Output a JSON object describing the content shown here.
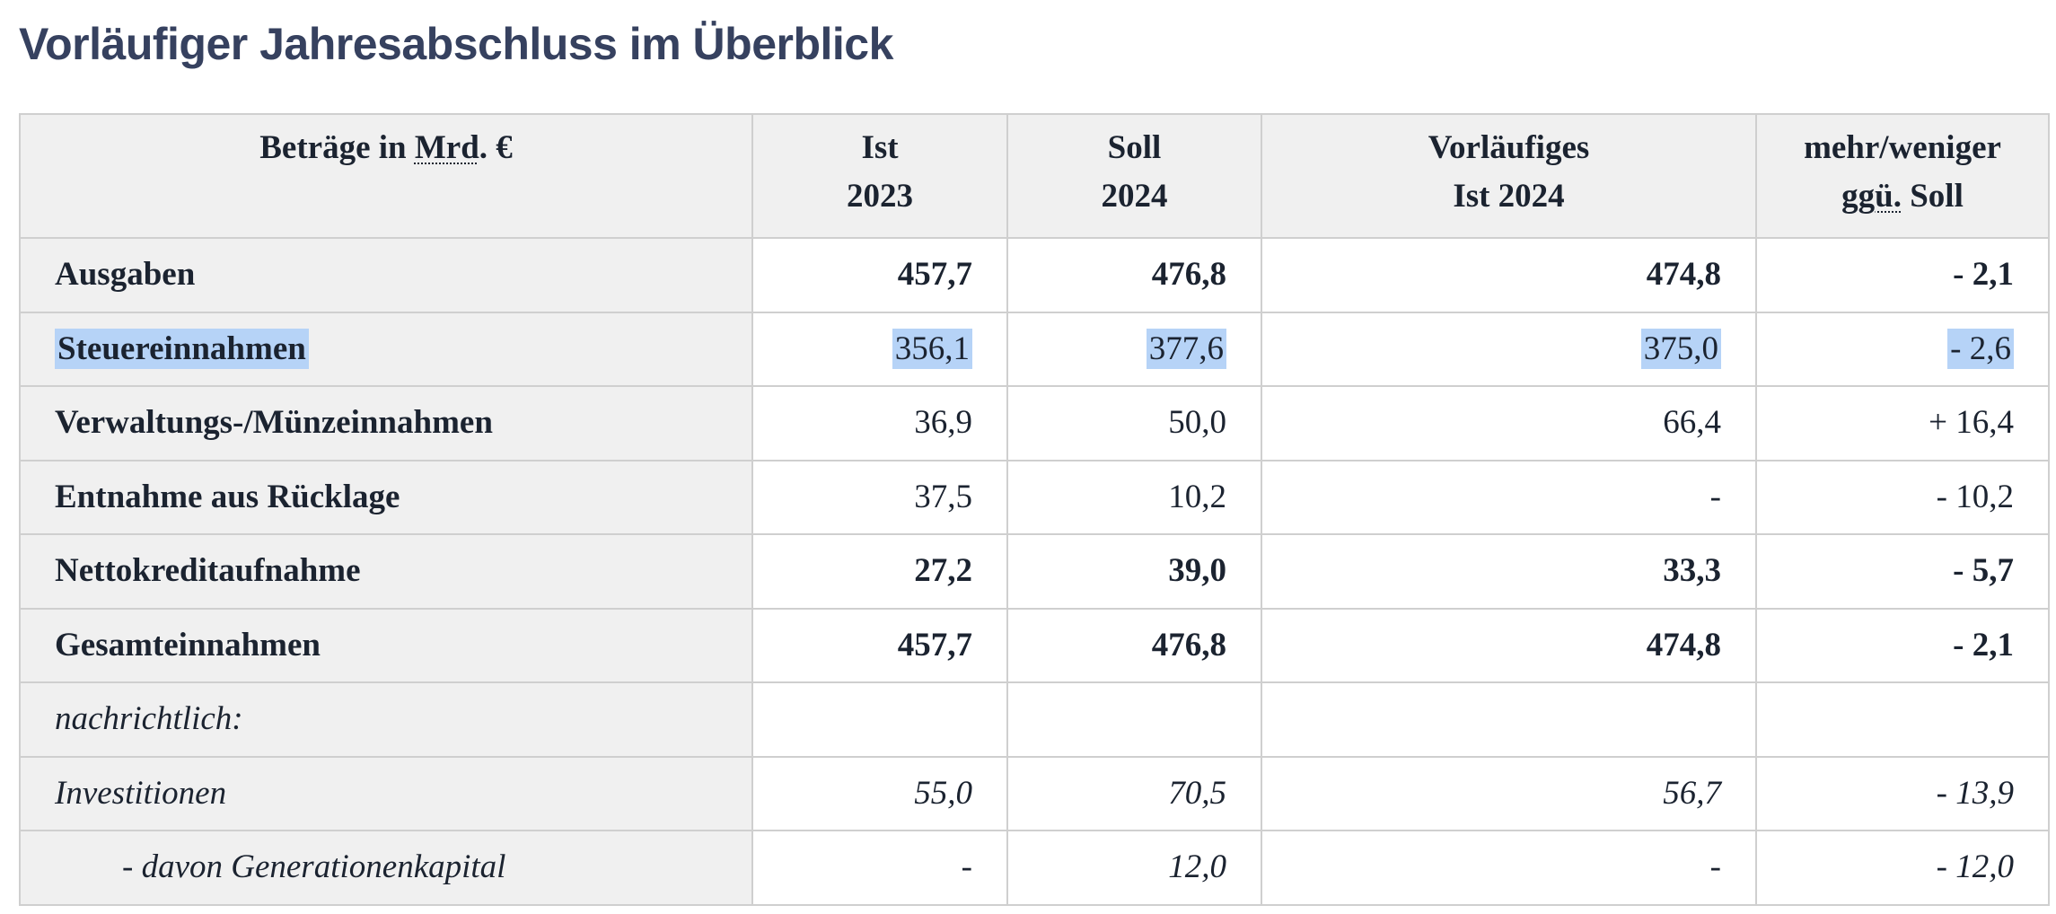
{
  "title": "Vorläufiger Jahresabschluss im Überblick",
  "table": {
    "header": {
      "col0_prefix": "Beträge in ",
      "col0_abbr": "Mrd",
      "col0_suffix": ". €",
      "col1_line1": "Ist",
      "col1_line2": "2023",
      "col2_line1": "Soll",
      "col2_line2": "2024",
      "col3_line1": "Vorläufiges",
      "col3_line2": "Ist 2024",
      "col4_line1": "mehr/weniger",
      "col4_abbr": "ggü.",
      "col4_suffix": " Soll"
    },
    "rows": [
      {
        "label": "Ausgaben",
        "ist_2023": "457,7",
        "soll_2024": "476,8",
        "vorl_ist_2024": "474,8",
        "diff": "- 2,1",
        "style": "bold"
      },
      {
        "label": "Steuereinnahmen",
        "ist_2023": "356,1",
        "soll_2024": "377,6",
        "vorl_ist_2024": "375,0",
        "diff": "- 2,6",
        "style": "highlighted"
      },
      {
        "label": "Verwaltungs-/Münzeinnahmen",
        "ist_2023": "36,9",
        "soll_2024": "50,0",
        "vorl_ist_2024": "66,4",
        "diff": "+ 16,4",
        "style": "normal"
      },
      {
        "label": "Entnahme aus Rücklage",
        "ist_2023": "37,5",
        "soll_2024": "10,2",
        "vorl_ist_2024": "-",
        "diff": "- 10,2",
        "style": "normal"
      },
      {
        "label": "Nettokreditaufnahme",
        "ist_2023": "27,2",
        "soll_2024": "39,0",
        "vorl_ist_2024": "33,3",
        "diff": "- 5,7",
        "style": "normal"
      },
      {
        "label": "Gesamteinnahmen",
        "ist_2023": "457,7",
        "soll_2024": "476,8",
        "vorl_ist_2024": "474,8",
        "diff": "- 2,1",
        "style": "bold"
      },
      {
        "label": "nachrichtlich:",
        "ist_2023": "",
        "soll_2024": "",
        "vorl_ist_2024": "",
        "diff": "",
        "style": "italic"
      },
      {
        "label": "Investitionen",
        "ist_2023": "55,0",
        "soll_2024": "70,5",
        "vorl_ist_2024": "56,7",
        "diff": "- 13,9",
        "style": "italic"
      },
      {
        "label": "- davon Generationenkapital",
        "ist_2023": "-",
        "soll_2024": "12,0",
        "vorl_ist_2024": "-",
        "diff": "- 12,0",
        "style": "italic-indented"
      }
    ]
  },
  "colors": {
    "title": "#36415f",
    "header_bg": "#f0f0f0",
    "label_bg": "#f0f0f0",
    "border": "#cfcfcf",
    "text_selection": "#b6d3f7"
  }
}
